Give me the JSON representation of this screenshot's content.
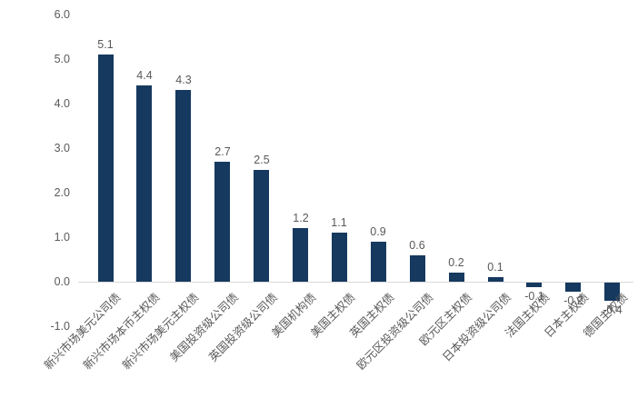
{
  "chart_data": {
    "type": "bar",
    "title": "",
    "xlabel": "",
    "ylabel": "",
    "categories": [
      "新兴市场美元公司债",
      "新兴市场本币主权债",
      "新兴市场美元主权债",
      "美国投资级公司债",
      "英国投资级公司债",
      "美国机构债",
      "美国主权债",
      "英国主权债",
      "欧元区投资级公司债",
      "欧元区主权债",
      "日本投资级公司债",
      "法国主权债",
      "日本主权债",
      "德国主权债"
    ],
    "values": [
      5.1,
      4.4,
      4.3,
      2.7,
      2.5,
      1.2,
      1.1,
      0.9,
      0.6,
      0.2,
      0.1,
      -0.1,
      -0.2,
      -0.4
    ],
    "value_labels": [
      "5.1",
      "4.4",
      "4.3",
      "2.7",
      "2.5",
      "1.2",
      "1.1",
      "0.9",
      "0.6",
      "0.2",
      "0.1",
      "-0.1",
      "-0.2",
      "-0.4"
    ],
    "y_ticks": [
      "6.0",
      "5.0",
      "4.0",
      "3.0",
      "2.0",
      "1.0",
      "0.0",
      "-1.0"
    ],
    "ylim": [
      -1.0,
      6.0
    ],
    "grid": false,
    "legend": "none",
    "colors": {
      "bar": "#16395F",
      "label_text": "#595959",
      "axis_line": "#D9D9D9",
      "background": "#FFFFFF"
    }
  }
}
